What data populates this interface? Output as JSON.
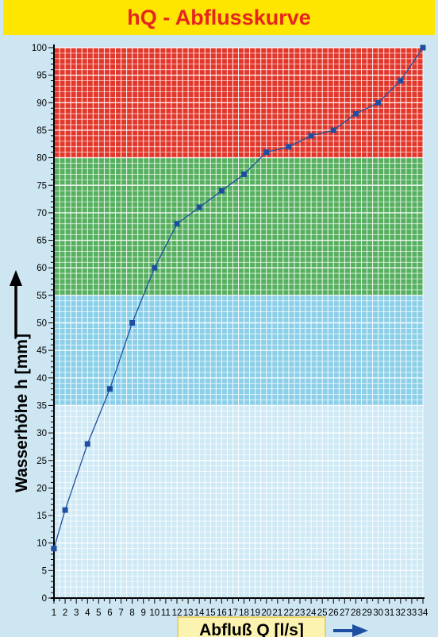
{
  "chart_data": {
    "type": "line",
    "title": "hQ - Abflusskurve",
    "xlabel": "Abfluß Q [l/s]",
    "ylabel": "Wasserhöhe h [mm]",
    "xlim": [
      1,
      34
    ],
    "ylim": [
      0,
      100
    ],
    "x_ticks": [
      1,
      2,
      3,
      4,
      5,
      6,
      7,
      8,
      9,
      10,
      11,
      12,
      13,
      14,
      15,
      16,
      17,
      18,
      19,
      20,
      21,
      22,
      23,
      24,
      25,
      26,
      27,
      28,
      29,
      30,
      31,
      32,
      33,
      34
    ],
    "y_ticks": [
      0,
      5,
      10,
      15,
      20,
      25,
      30,
      35,
      40,
      45,
      50,
      55,
      60,
      65,
      70,
      75,
      80,
      85,
      90,
      95,
      100
    ],
    "grid": true,
    "zones": [
      {
        "from": 0,
        "to": 35,
        "color": "#cfe9f5"
      },
      {
        "from": 35,
        "to": 55,
        "color": "#8ccfe8"
      },
      {
        "from": 55,
        "to": 80,
        "color": "#57b060"
      },
      {
        "from": 80,
        "to": 100,
        "color": "#e2382c"
      }
    ],
    "series": [
      {
        "x": [
          1,
          2,
          4,
          6,
          8,
          10,
          12,
          14,
          16,
          18,
          20,
          22,
          24,
          26,
          28,
          30,
          32,
          34
        ],
        "y": [
          9,
          16,
          28,
          38,
          50,
          60,
          68,
          71,
          74,
          77,
          81,
          82,
          84,
          85,
          88,
          90,
          94,
          100
        ],
        "color": "#1f4fa0"
      }
    ]
  },
  "colors": {
    "title_bg": "#ffe600",
    "title_text": "#e52521",
    "frame_bg": "#cde6f2",
    "xlabel_box": "#fdf3b0",
    "arrow": "#1f4fa0"
  }
}
